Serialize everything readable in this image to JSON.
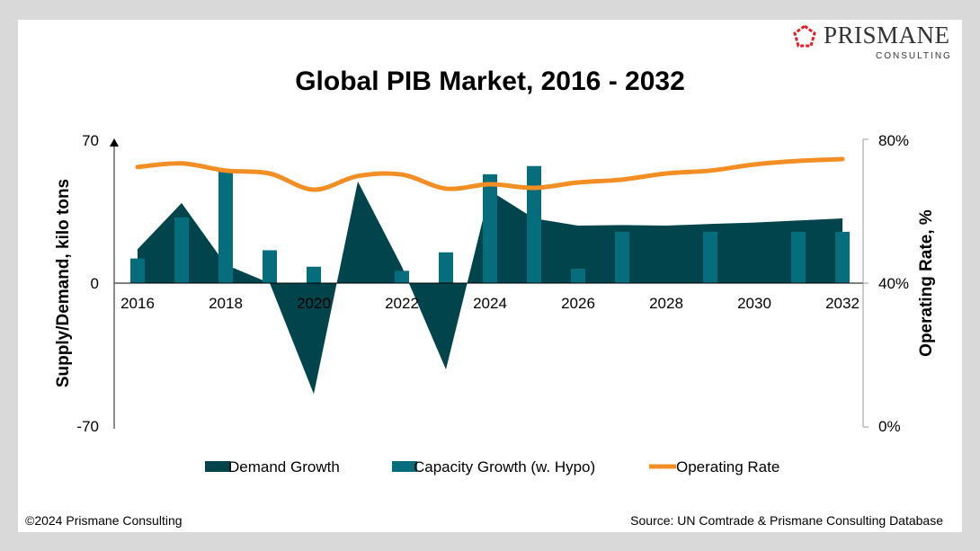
{
  "brand": {
    "name": "PRISMANE",
    "sub": "CONSULTING",
    "logo_color": "#e31e24"
  },
  "footer": {
    "copyright": "©2024 Prismane Consulting",
    "source": "Source: UN Comtrade &  Prismane Consulting Database"
  },
  "chart_data": {
    "type": "area+bar+line",
    "title": "Global PIB Market, 2016 - 2032",
    "ylabel": "Supply/Demand, kilo tons",
    "y2label": "Operating Rate, %",
    "ylim": [
      -70,
      70
    ],
    "y2lim": [
      0,
      80
    ],
    "yticks": [
      "70",
      "0",
      "-70"
    ],
    "y2ticks": [
      "80%",
      "40%",
      "0%"
    ],
    "x": [
      2016,
      2017,
      2018,
      2019,
      2020,
      2021,
      2022,
      2023,
      2024,
      2025,
      2026,
      2027,
      2028,
      2029,
      2030,
      2031,
      2032
    ],
    "xticks": [
      "2016",
      "2018",
      "2020",
      "2022",
      "2024",
      "2026",
      "2028",
      "2030",
      "2032"
    ],
    "legend_position": "bottom",
    "series": [
      {
        "name": "Demand Growth",
        "type": "area",
        "axis": "left",
        "color": "#01444c",
        "values": [
          16.5,
          39,
          9,
          0,
          -54,
          49.5,
          8,
          -42,
          45,
          31.5,
          28,
          28.3,
          28,
          28.8,
          29.5,
          30.5,
          31.5
        ]
      },
      {
        "name": "Capacity Growth (w. Hypo)",
        "type": "bar",
        "axis": "left",
        "color": "#056d7c",
        "values": [
          12,
          32,
          55,
          16,
          8,
          0,
          6,
          15,
          53,
          57,
          7,
          25,
          0,
          25,
          0,
          25,
          25
        ]
      },
      {
        "name": "Operating Rate",
        "type": "line",
        "axis": "right",
        "color": "#f28e23",
        "values": [
          72.3,
          73.3,
          71.3,
          70.5,
          66,
          69.8,
          70.2,
          66.3,
          67.5,
          66.5,
          68,
          68.8,
          70.5,
          71.3,
          73,
          74,
          74.5
        ]
      }
    ]
  }
}
